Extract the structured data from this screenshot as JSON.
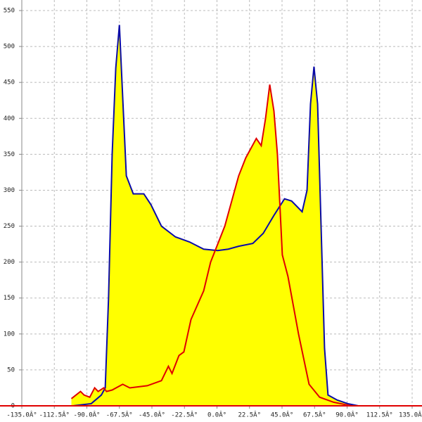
{
  "chart_data": {
    "type": "area",
    "xlim": [
      -135,
      135
    ],
    "ylim": [
      0,
      550
    ],
    "xticks": [
      {
        "value": -135,
        "label": "-135.0Â°"
      },
      {
        "value": -112.5,
        "label": "-112.5Â°"
      },
      {
        "value": -90,
        "label": "-90.0Â°"
      },
      {
        "value": -67.5,
        "label": "-67.5Â°"
      },
      {
        "value": -45,
        "label": "-45.0Â°"
      },
      {
        "value": -22.5,
        "label": "-22.5Â°"
      },
      {
        "value": 0,
        "label": "0.0Â°"
      },
      {
        "value": 22.5,
        "label": "22.5Â°"
      },
      {
        "value": 45,
        "label": "45.0Â°"
      },
      {
        "value": 67.5,
        "label": "67.5Â°"
      },
      {
        "value": 90,
        "label": "90.0Â°"
      },
      {
        "value": 112.5,
        "label": "112.5Â°"
      },
      {
        "value": 135,
        "label": "135.0Â°"
      }
    ],
    "yticks": [
      0,
      50,
      100,
      150,
      200,
      250,
      300,
      350,
      400,
      450,
      500,
      550
    ],
    "grid": true,
    "fill": "#ffff00",
    "series": [
      {
        "color": "#0a0aa8",
        "x": [
          -99.7,
          -87,
          -80,
          -77.3,
          -75,
          -72.5,
          -70,
          -67.5,
          -65,
          -62.7,
          -57.9,
          -50.6,
          -45.7,
          -38.4,
          -28.7,
          -19,
          -9.2,
          0.5,
          7.8,
          15,
          24.8,
          32,
          39.4,
          46.7,
          51.6,
          58.9,
          62.3,
          64.7,
          67.1,
          69.6,
          72,
          74.4,
          76.8,
          83.2,
          90.5,
          97.8
        ],
        "values": [
          0,
          3,
          15,
          25,
          150,
          350,
          470,
          530,
          420,
          320,
          295,
          295,
          280,
          250,
          235,
          228,
          218,
          216,
          218,
          222,
          226,
          240,
          265,
          288,
          285,
          270,
          300,
          420,
          472,
          420,
          250,
          80,
          15,
          8,
          3,
          0
        ]
      },
      {
        "color": "#e00000",
        "x": [
          -100.7,
          -94.4,
          -91.9,
          -88,
          -84.6,
          -82.2,
          -78.3,
          -76.4,
          -72.5,
          -65.2,
          -60.3,
          -48.2,
          -38.4,
          -33.6,
          -31.1,
          -26.3,
          -22.9,
          -18,
          -9.2,
          -4.4,
          5.4,
          15,
          19.9,
          27.2,
          30.6,
          33.6,
          36.5,
          39.4,
          41.8,
          45.2,
          49.1,
          56.4,
          63.7,
          71,
          80.7,
          92.9
        ],
        "values": [
          10,
          20,
          15,
          12,
          25,
          20,
          25,
          20,
          22,
          30,
          25,
          28,
          35,
          55,
          45,
          70,
          75,
          120,
          160,
          200,
          250,
          320,
          345,
          372,
          362,
          400,
          447,
          410,
          350,
          210,
          180,
          100,
          30,
          12,
          5,
          0
        ]
      }
    ]
  }
}
